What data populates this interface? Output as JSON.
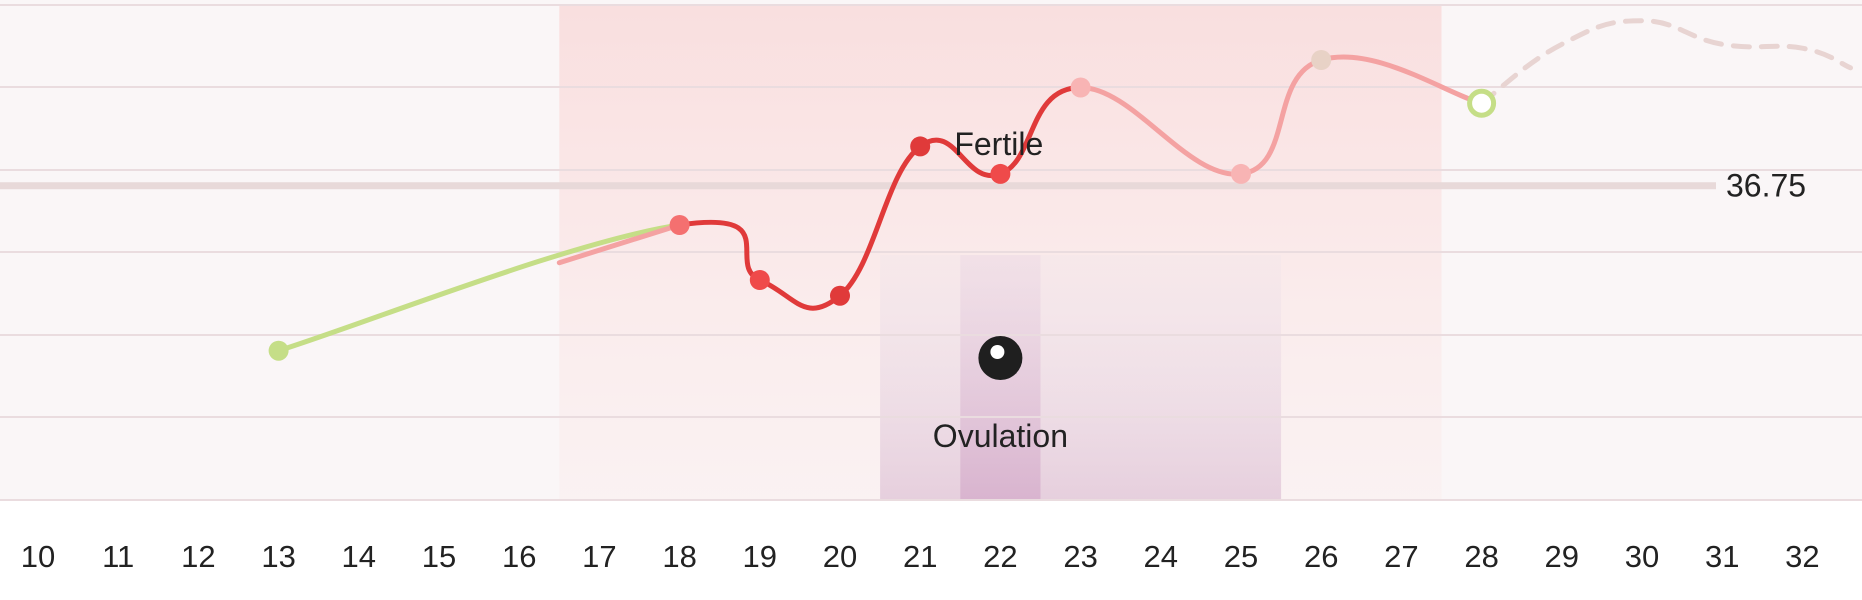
{
  "chart_data": {
    "type": "line",
    "title": "",
    "xlabel": "",
    "ylabel": "",
    "x_ticks": [
      10,
      11,
      12,
      13,
      14,
      15,
      16,
      17,
      18,
      19,
      20,
      21,
      22,
      23,
      24,
      25,
      26,
      27,
      28,
      29,
      30,
      31,
      32
    ],
    "xlim": [
      9.5,
      32.6
    ],
    "ylim": [
      36.35,
      36.98
    ],
    "series": [
      {
        "points": [
          {
            "x": 13,
            "y": 36.54
          },
          {
            "x": 18,
            "y": 36.7
          },
          {
            "x": 19,
            "y": 36.63
          },
          {
            "x": 20,
            "y": 36.61
          },
          {
            "x": 21,
            "y": 36.8
          },
          {
            "x": 22,
            "y": 36.765
          },
          {
            "x": 23,
            "y": 36.875
          },
          {
            "x": 25,
            "y": 36.765
          },
          {
            "x": 26,
            "y": 36.91
          },
          {
            "x": 28,
            "y": 36.855
          }
        ]
      }
    ],
    "projection": [
      {
        "x": 28,
        "y": 36.855
      },
      {
        "x": 29,
        "y": 36.93
      },
      {
        "x": 30,
        "y": 36.96
      },
      {
        "x": 31,
        "y": 36.93
      },
      {
        "x": 32,
        "y": 36.925
      },
      {
        "x": 32.6,
        "y": 36.9
      }
    ],
    "reference_line": {
      "value": 36.75,
      "label": "36.75",
      "color": "#e8d9d9"
    },
    "bands": [
      {
        "name": "Fertile",
        "label": "Fertile",
        "from": 16.5,
        "to": 27.5,
        "color": "#f9dcdc"
      },
      {
        "name": "Ovulation",
        "label": "Ovulation",
        "from": 20.5,
        "to": 25.5,
        "peak_day": 22,
        "color": "#e9cfe1"
      }
    ],
    "grid": true,
    "legend": "none",
    "colors": {
      "low": "#c5de87",
      "fertile": "#f4a2a2",
      "peak": "#e03a3a",
      "late": "#e8d2c6",
      "projection": "#e8d4d2",
      "today": "#c5de87"
    },
    "icons": {
      "ovulation": "egg-icon"
    }
  }
}
